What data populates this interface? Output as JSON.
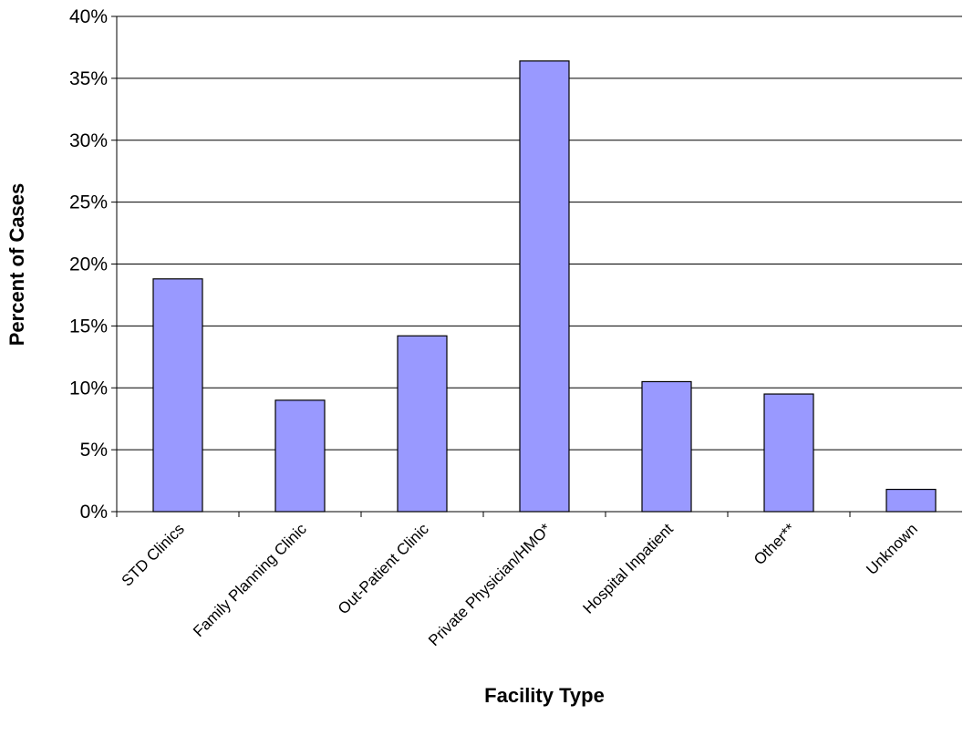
{
  "chart_data": {
    "type": "bar",
    "x_label": "Facility Type",
    "y_label": "Percent of Cases",
    "categories": [
      "STD Clinics",
      "Family Planning Clinic",
      "Out-Patient Clinic",
      "Private Physician/HMO*",
      "Hospital Inpatient",
      "Other**",
      "Unknown"
    ],
    "values": [
      18.8,
      9.0,
      14.2,
      36.4,
      10.5,
      9.5,
      1.8
    ],
    "color": "#9999ff",
    "ylim": [
      0,
      40
    ],
    "yticks": [
      {
        "value": 0,
        "label": "0%"
      },
      {
        "value": 5,
        "label": "5%"
      },
      {
        "value": 10,
        "label": "10%"
      },
      {
        "value": 15,
        "label": "15%"
      },
      {
        "value": 20,
        "label": "20%"
      },
      {
        "value": 25,
        "label": "25%"
      },
      {
        "value": 30,
        "label": "30%"
      },
      {
        "value": 35,
        "label": "35%"
      },
      {
        "value": 40,
        "label": "40%"
      }
    ],
    "grid": true
  }
}
